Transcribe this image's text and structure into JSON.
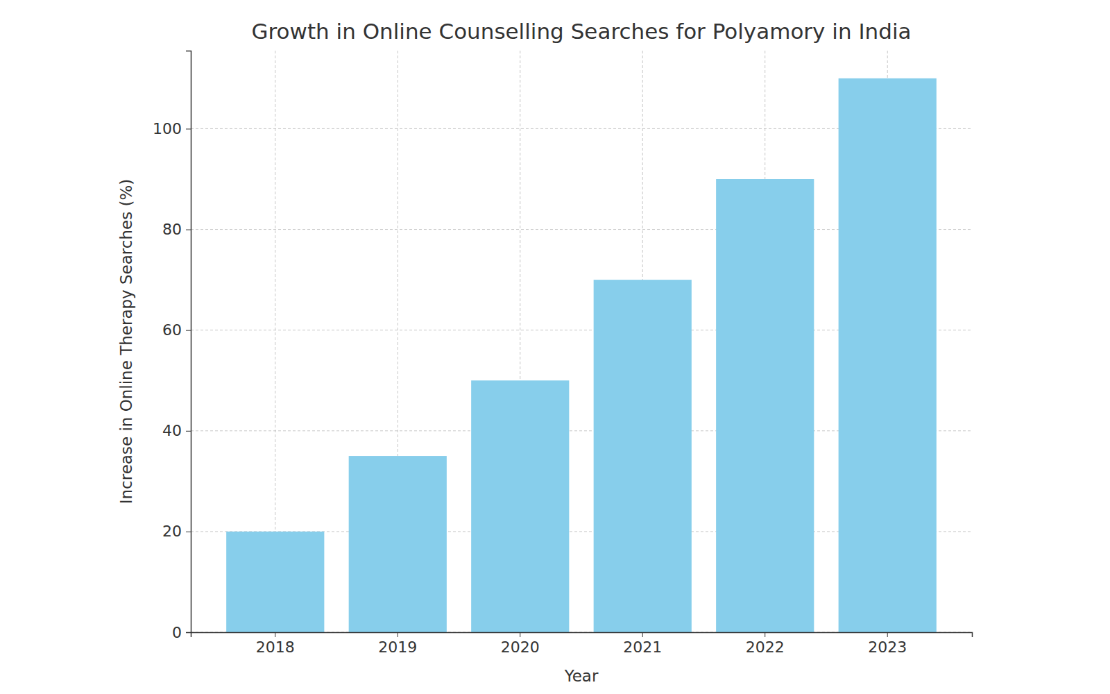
{
  "chart_data": {
    "type": "bar",
    "title": "Growth in Online Counselling Searches for Polyamory in India",
    "x_label": "Year",
    "y_label": "Increase in Online Therapy Searches (%)",
    "categories": [
      "2018",
      "2019",
      "2020",
      "2021",
      "2022",
      "2023"
    ],
    "values": [
      20,
      35,
      50,
      70,
      90,
      110
    ],
    "color": "#87ceeb",
    "ylim": [
      0,
      115.5
    ],
    "yticks": [
      0,
      20,
      40,
      60,
      80,
      100
    ],
    "grid": true
  }
}
